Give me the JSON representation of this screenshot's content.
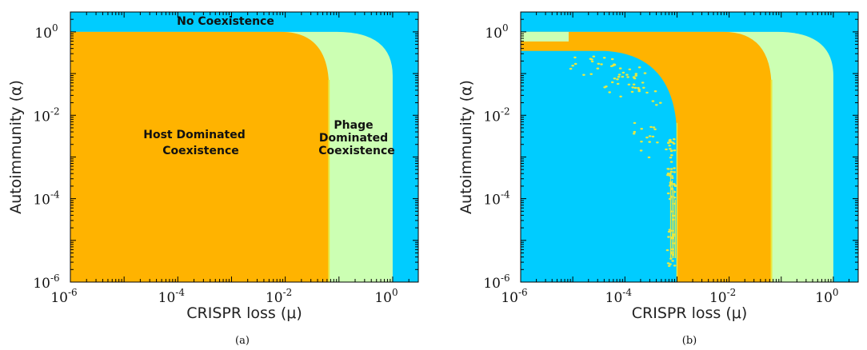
{
  "colors": {
    "no_coexistence": "#00ccff",
    "phage_dominated": "#ccffb3",
    "host_dominated": "#ffb300",
    "boundary_line": "#e8e840"
  },
  "chart_data": [
    {
      "type": "heatmap",
      "panel": "a",
      "caption": "(a)",
      "xlabel": "CRISPR loss (μ)",
      "ylabel": "Autoimmunity (α)",
      "x_scale": "log",
      "y_scale": "log",
      "xlim": [
        1e-06,
        3
      ],
      "ylim": [
        1e-06,
        3
      ],
      "x_ticks": [
        {
          "base": "10",
          "exp": "-6"
        },
        {
          "base": "10",
          "exp": "-4"
        },
        {
          "base": "10",
          "exp": "-2"
        },
        {
          "base": "10",
          "exp": "0"
        }
      ],
      "y_ticks": [
        {
          "base": "10",
          "exp": "-6"
        },
        {
          "base": "10",
          "exp": "-4"
        },
        {
          "base": "10",
          "exp": "-2"
        },
        {
          "base": "10",
          "exp": "0"
        }
      ],
      "regions": [
        {
          "name": "No Coexistence",
          "label_lines": [
            "No Coexistence"
          ],
          "mu_max": null,
          "alpha_max": null
        },
        {
          "name": "Phage Dominated Coexistence",
          "label_lines": [
            "Phage",
            "Dominated",
            "Coexistence"
          ],
          "mu_max": 1.0,
          "alpha_max": 1.0
        },
        {
          "name": "Host Dominated Coexistence",
          "label_lines": [
            "Host Dominated",
            "Coexistence"
          ],
          "mu_max": 0.065,
          "alpha_max": 1.0
        }
      ],
      "host_low_region": null
    },
    {
      "type": "heatmap",
      "panel": "b",
      "caption": "(b)",
      "xlabel": "CRISPR loss (μ)",
      "ylabel": "Autoimmunity (α)",
      "x_scale": "log",
      "y_scale": "log",
      "xlim": [
        1e-06,
        3
      ],
      "ylim": [
        1e-06,
        3
      ],
      "x_ticks": [
        {
          "base": "10",
          "exp": "-6"
        },
        {
          "base": "10",
          "exp": "-4"
        },
        {
          "base": "10",
          "exp": "-2"
        },
        {
          "base": "10",
          "exp": "0"
        }
      ],
      "y_ticks": [
        {
          "base": "10",
          "exp": "-6"
        },
        {
          "base": "10",
          "exp": "-4"
        },
        {
          "base": "10",
          "exp": "-2"
        },
        {
          "base": "10",
          "exp": "0"
        }
      ],
      "regions": [
        {
          "name": "No Coexistence",
          "label_lines": [],
          "mu_max": null,
          "alpha_max": null
        },
        {
          "name": "Phage Dominated Coexistence",
          "label_lines": [],
          "mu_max": 1.0,
          "alpha_max": 1.0
        },
        {
          "name": "Host Dominated Coexistence",
          "label_lines": [],
          "mu_max": 0.065,
          "alpha_max": 1.0
        }
      ],
      "host_low_region": {
        "mu_min": 0.001,
        "alpha_min": 0.35
      }
    }
  ]
}
